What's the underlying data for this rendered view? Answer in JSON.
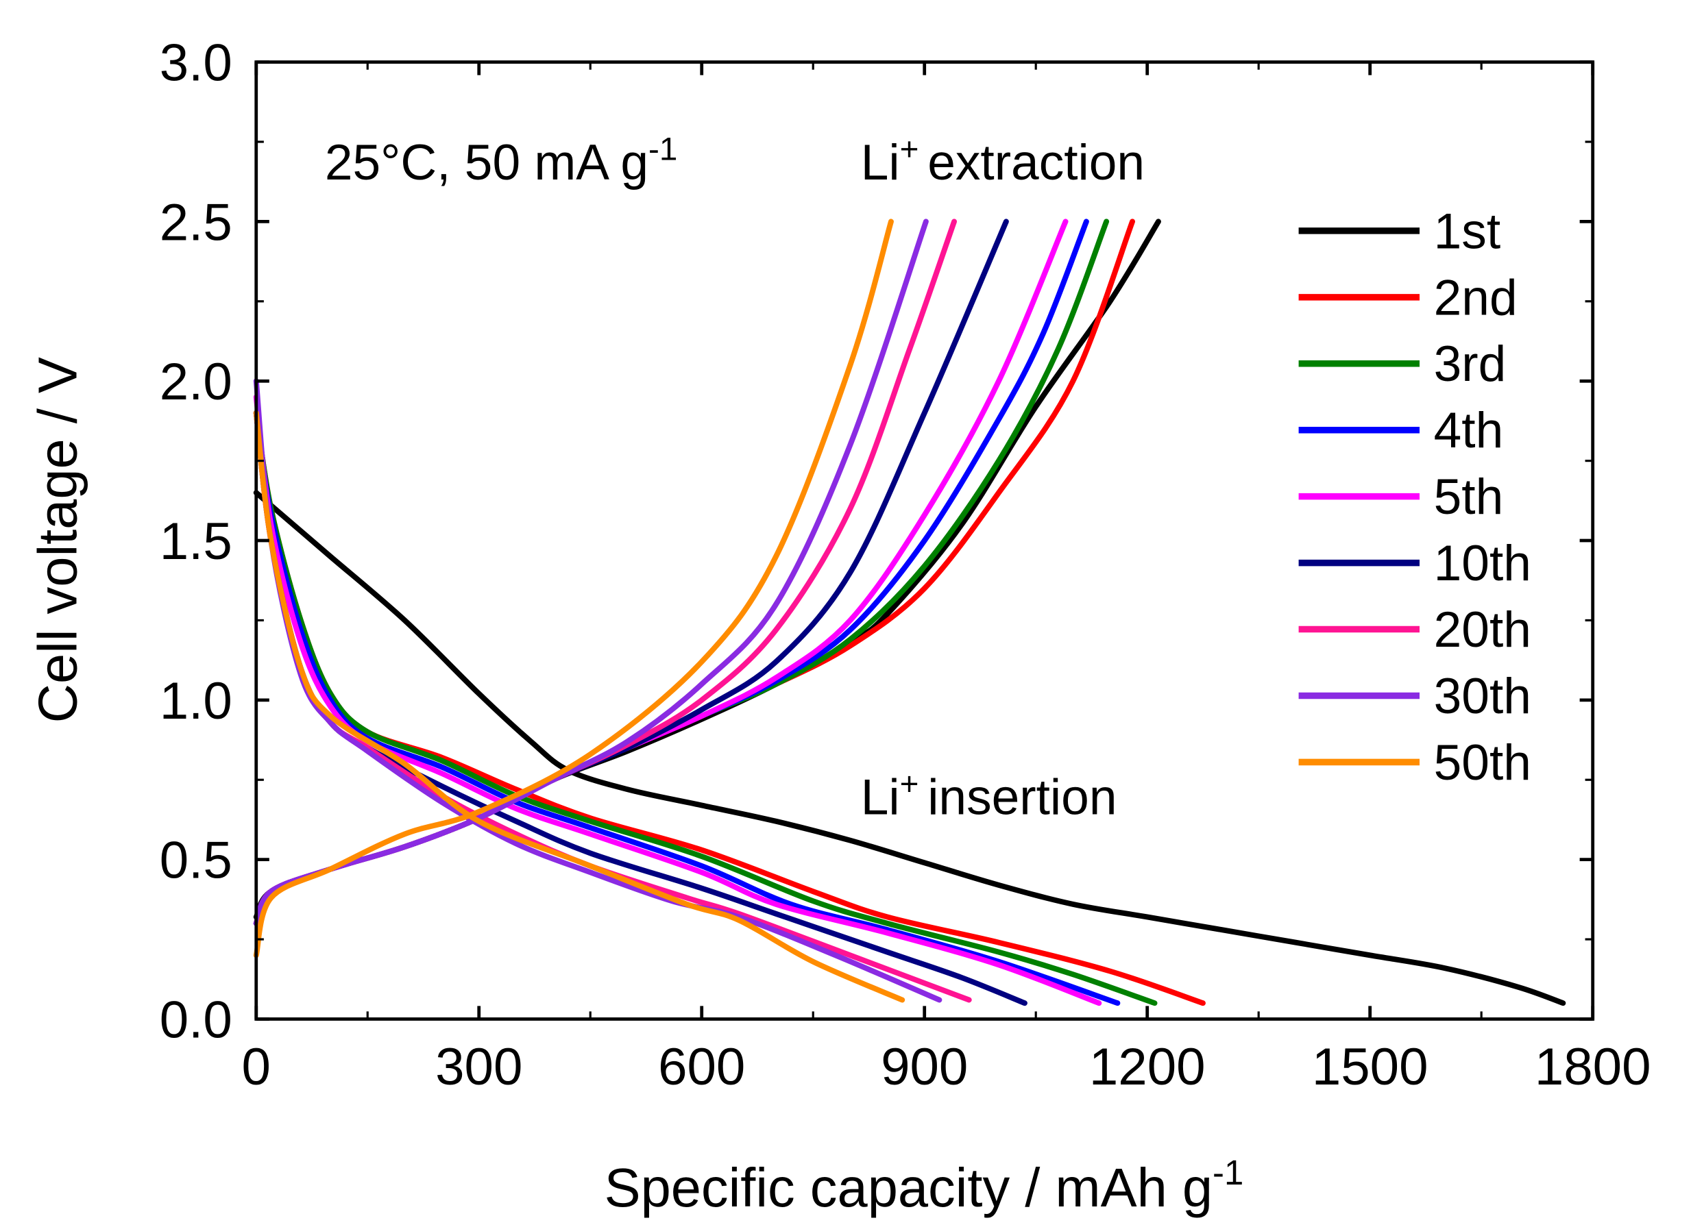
{
  "chart_data": {
    "type": "line",
    "title": "",
    "xlabel": "Specific capacity / mAh g",
    "xlabel_sup": "-1",
    "ylabel": "Cell voltage / V",
    "xlim": [
      0,
      1800
    ],
    "ylim": [
      0,
      3.0
    ],
    "xticks": [
      0,
      300,
      600,
      900,
      1200,
      1500,
      1800
    ],
    "yticks": [
      0.0,
      0.5,
      1.0,
      1.5,
      2.0,
      2.5,
      3.0
    ],
    "ytick_labels": [
      "0.0",
      "0.5",
      "1.0",
      "1.5",
      "2.0",
      "2.5",
      "3.0"
    ],
    "grid": false,
    "legend_position": "right",
    "annotations": {
      "condition": "25°C, 50 mA g",
      "condition_sup": "-1",
      "extraction": "extraction",
      "insertion": "insertion",
      "ion": "Li",
      "ion_sup": "+"
    },
    "series": [
      {
        "name": "1st",
        "color": "#000000",
        "insertion": [
          [
            0,
            1.65
          ],
          [
            50,
            1.55
          ],
          [
            100,
            1.45
          ],
          [
            200,
            1.25
          ],
          [
            300,
            1.02
          ],
          [
            370,
            0.87
          ],
          [
            420,
            0.78
          ],
          [
            500,
            0.72
          ],
          [
            600,
            0.67
          ],
          [
            700,
            0.62
          ],
          [
            800,
            0.56
          ],
          [
            900,
            0.49
          ],
          [
            1000,
            0.42
          ],
          [
            1100,
            0.36
          ],
          [
            1200,
            0.32
          ],
          [
            1300,
            0.28
          ],
          [
            1400,
            0.24
          ],
          [
            1500,
            0.2
          ],
          [
            1600,
            0.16
          ],
          [
            1700,
            0.1
          ],
          [
            1760,
            0.05
          ]
        ],
        "extraction": [
          [
            0,
            0.32
          ],
          [
            20,
            0.4
          ],
          [
            100,
            0.47
          ],
          [
            200,
            0.54
          ],
          [
            300,
            0.63
          ],
          [
            400,
            0.75
          ],
          [
            500,
            0.84
          ],
          [
            600,
            0.94
          ],
          [
            700,
            1.05
          ],
          [
            800,
            1.18
          ],
          [
            850,
            1.27
          ],
          [
            950,
            1.55
          ],
          [
            1050,
            1.92
          ],
          [
            1150,
            2.25
          ],
          [
            1215,
            2.5
          ]
        ]
      },
      {
        "name": "2nd",
        "color": "#ff0000",
        "insertion": [
          [
            0,
            1.9
          ],
          [
            20,
            1.6
          ],
          [
            60,
            1.25
          ],
          [
            100,
            1.02
          ],
          [
            150,
            0.9
          ],
          [
            250,
            0.82
          ],
          [
            350,
            0.72
          ],
          [
            450,
            0.63
          ],
          [
            600,
            0.53
          ],
          [
            750,
            0.4
          ],
          [
            850,
            0.32
          ],
          [
            1000,
            0.24
          ],
          [
            1150,
            0.15
          ],
          [
            1275,
            0.05
          ]
        ],
        "extraction": [
          [
            0,
            0.3
          ],
          [
            20,
            0.4
          ],
          [
            100,
            0.47
          ],
          [
            200,
            0.54
          ],
          [
            300,
            0.63
          ],
          [
            400,
            0.75
          ],
          [
            500,
            0.85
          ],
          [
            600,
            0.95
          ],
          [
            700,
            1.05
          ],
          [
            800,
            1.17
          ],
          [
            900,
            1.35
          ],
          [
            1000,
            1.65
          ],
          [
            1100,
            2.0
          ],
          [
            1180,
            2.5
          ]
        ]
      },
      {
        "name": "3rd",
        "color": "#008000",
        "insertion": [
          [
            0,
            1.9
          ],
          [
            20,
            1.6
          ],
          [
            60,
            1.25
          ],
          [
            100,
            1.02
          ],
          [
            150,
            0.9
          ],
          [
            250,
            0.81
          ],
          [
            350,
            0.7
          ],
          [
            450,
            0.62
          ],
          [
            600,
            0.51
          ],
          [
            750,
            0.37
          ],
          [
            850,
            0.3
          ],
          [
            1000,
            0.21
          ],
          [
            1100,
            0.14
          ],
          [
            1210,
            0.05
          ]
        ],
        "extraction": [
          [
            0,
            0.3
          ],
          [
            20,
            0.4
          ],
          [
            100,
            0.47
          ],
          [
            200,
            0.54
          ],
          [
            300,
            0.63
          ],
          [
            400,
            0.75
          ],
          [
            500,
            0.85
          ],
          [
            600,
            0.95
          ],
          [
            700,
            1.05
          ],
          [
            800,
            1.19
          ],
          [
            900,
            1.42
          ],
          [
            1000,
            1.75
          ],
          [
            1080,
            2.1
          ],
          [
            1145,
            2.5
          ]
        ]
      },
      {
        "name": "4th",
        "color": "#0000ff",
        "insertion": [
          [
            0,
            1.9
          ],
          [
            20,
            1.58
          ],
          [
            60,
            1.22
          ],
          [
            100,
            1.0
          ],
          [
            150,
            0.88
          ],
          [
            250,
            0.79
          ],
          [
            350,
            0.68
          ],
          [
            450,
            0.6
          ],
          [
            600,
            0.48
          ],
          [
            720,
            0.36
          ],
          [
            850,
            0.28
          ],
          [
            1000,
            0.18
          ],
          [
            1160,
            0.05
          ]
        ],
        "extraction": [
          [
            0,
            0.3
          ],
          [
            20,
            0.4
          ],
          [
            100,
            0.47
          ],
          [
            200,
            0.54
          ],
          [
            300,
            0.63
          ],
          [
            400,
            0.75
          ],
          [
            500,
            0.85
          ],
          [
            600,
            0.95
          ],
          [
            700,
            1.06
          ],
          [
            800,
            1.22
          ],
          [
            900,
            1.5
          ],
          [
            1000,
            1.88
          ],
          [
            1060,
            2.15
          ],
          [
            1118,
            2.5
          ]
        ]
      },
      {
        "name": "5th",
        "color": "#ff00ff",
        "insertion": [
          [
            0,
            1.95
          ],
          [
            20,
            1.55
          ],
          [
            60,
            1.18
          ],
          [
            100,
            0.98
          ],
          [
            150,
            0.87
          ],
          [
            250,
            0.77
          ],
          [
            350,
            0.66
          ],
          [
            450,
            0.58
          ],
          [
            600,
            0.46
          ],
          [
            700,
            0.36
          ],
          [
            850,
            0.27
          ],
          [
            1000,
            0.17
          ],
          [
            1135,
            0.05
          ]
        ],
        "extraction": [
          [
            0,
            0.3
          ],
          [
            20,
            0.4
          ],
          [
            100,
            0.47
          ],
          [
            200,
            0.54
          ],
          [
            300,
            0.63
          ],
          [
            400,
            0.75
          ],
          [
            500,
            0.85
          ],
          [
            600,
            0.95
          ],
          [
            700,
            1.07
          ],
          [
            800,
            1.25
          ],
          [
            900,
            1.58
          ],
          [
            1000,
            2.0
          ],
          [
            1090,
            2.5
          ]
        ]
      },
      {
        "name": "10th",
        "color": "#000080",
        "insertion": [
          [
            0,
            1.9
          ],
          [
            20,
            1.5
          ],
          [
            60,
            1.1
          ],
          [
            100,
            0.93
          ],
          [
            150,
            0.85
          ],
          [
            250,
            0.73
          ],
          [
            350,
            0.62
          ],
          [
            450,
            0.52
          ],
          [
            600,
            0.41
          ],
          [
            700,
            0.33
          ],
          [
            850,
            0.21
          ],
          [
            950,
            0.13
          ],
          [
            1035,
            0.05
          ]
        ],
        "extraction": [
          [
            0,
            0.3
          ],
          [
            20,
            0.4
          ],
          [
            100,
            0.47
          ],
          [
            200,
            0.54
          ],
          [
            300,
            0.63
          ],
          [
            400,
            0.75
          ],
          [
            500,
            0.85
          ],
          [
            600,
            0.97
          ],
          [
            700,
            1.12
          ],
          [
            800,
            1.4
          ],
          [
            900,
            1.9
          ],
          [
            1010,
            2.5
          ]
        ]
      },
      {
        "name": "20th",
        "color": "#ff1493",
        "insertion": [
          [
            0,
            1.9
          ],
          [
            20,
            1.5
          ],
          [
            60,
            1.1
          ],
          [
            100,
            0.93
          ],
          [
            150,
            0.85
          ],
          [
            250,
            0.7
          ],
          [
            350,
            0.58
          ],
          [
            450,
            0.48
          ],
          [
            580,
            0.38
          ],
          [
            650,
            0.33
          ],
          [
            800,
            0.2
          ],
          [
            960,
            0.06
          ]
        ],
        "extraction": [
          [
            0,
            0.3
          ],
          [
            20,
            0.4
          ],
          [
            100,
            0.47
          ],
          [
            200,
            0.54
          ],
          [
            300,
            0.63
          ],
          [
            400,
            0.75
          ],
          [
            500,
            0.86
          ],
          [
            600,
            1.0
          ],
          [
            700,
            1.22
          ],
          [
            800,
            1.6
          ],
          [
            880,
            2.1
          ],
          [
            940,
            2.5
          ]
        ]
      },
      {
        "name": "30th",
        "color": "#8a2be2",
        "insertion": [
          [
            0,
            2.0
          ],
          [
            20,
            1.5
          ],
          [
            60,
            1.08
          ],
          [
            100,
            0.93
          ],
          [
            150,
            0.84
          ],
          [
            250,
            0.68
          ],
          [
            350,
            0.55
          ],
          [
            450,
            0.46
          ],
          [
            560,
            0.37
          ],
          [
            650,
            0.32
          ],
          [
            780,
            0.2
          ],
          [
            920,
            0.06
          ]
        ],
        "extraction": [
          [
            0,
            0.3
          ],
          [
            20,
            0.4
          ],
          [
            100,
            0.47
          ],
          [
            200,
            0.54
          ],
          [
            300,
            0.63
          ],
          [
            400,
            0.75
          ],
          [
            500,
            0.87
          ],
          [
            600,
            1.05
          ],
          [
            700,
            1.3
          ],
          [
            800,
            1.8
          ],
          [
            902,
            2.5
          ]
        ]
      },
      {
        "name": "50th",
        "color": "#ff8c00",
        "insertion": [
          [
            0,
            1.9
          ],
          [
            20,
            1.5
          ],
          [
            60,
            1.1
          ],
          [
            100,
            0.95
          ],
          [
            200,
            0.8
          ],
          [
            300,
            0.62
          ],
          [
            450,
            0.48
          ],
          [
            580,
            0.36
          ],
          [
            650,
            0.31
          ],
          [
            750,
            0.18
          ],
          [
            870,
            0.06
          ]
        ],
        "extraction": [
          [
            0,
            0.2
          ],
          [
            20,
            0.38
          ],
          [
            100,
            0.47
          ],
          [
            200,
            0.58
          ],
          [
            300,
            0.65
          ],
          [
            450,
            0.83
          ],
          [
            600,
            1.12
          ],
          [
            700,
            1.45
          ],
          [
            800,
            2.05
          ],
          [
            855,
            2.5
          ]
        ]
      }
    ]
  }
}
